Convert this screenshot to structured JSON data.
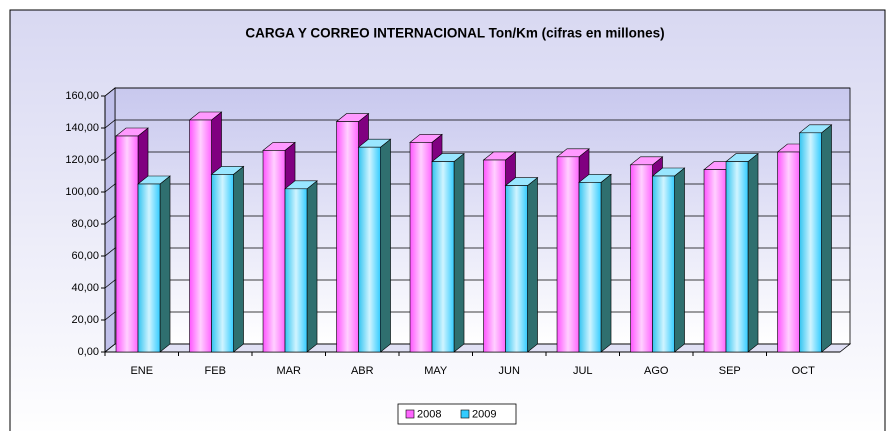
{
  "chart_data": {
    "type": "bar3d",
    "title": "CARGA Y CORREO INTERNACIONAL Ton/Km (cifras en millones)",
    "categories": [
      "ENE",
      "FEB",
      "MAR",
      "ABR",
      "MAY",
      "JUN",
      "JUL",
      "AGO",
      "SEP",
      "OCT"
    ],
    "series": [
      {
        "name": "2008",
        "color": "#ff66ff",
        "values": [
          135,
          145,
          126,
          144,
          131,
          120,
          122,
          117,
          114,
          125
        ]
      },
      {
        "name": "2009",
        "color": "#33ccff",
        "values": [
          105,
          111,
          102,
          128,
          119,
          104,
          106,
          110,
          119,
          137
        ]
      }
    ],
    "ylim": [
      0,
      160
    ],
    "yticks": [
      {
        "value": 0,
        "label": "0,00"
      },
      {
        "value": 20,
        "label": "20,00"
      },
      {
        "value": 40,
        "label": "40,00"
      },
      {
        "value": 60,
        "label": "60,00"
      },
      {
        "value": 80,
        "label": "80,00"
      },
      {
        "value": 100,
        "label": "100,00"
      },
      {
        "value": 120,
        "label": "120,00"
      },
      {
        "value": 140,
        "label": "140,00"
      },
      {
        "value": 160,
        "label": "160,00"
      }
    ],
    "grid": true,
    "legend": "bottom"
  }
}
